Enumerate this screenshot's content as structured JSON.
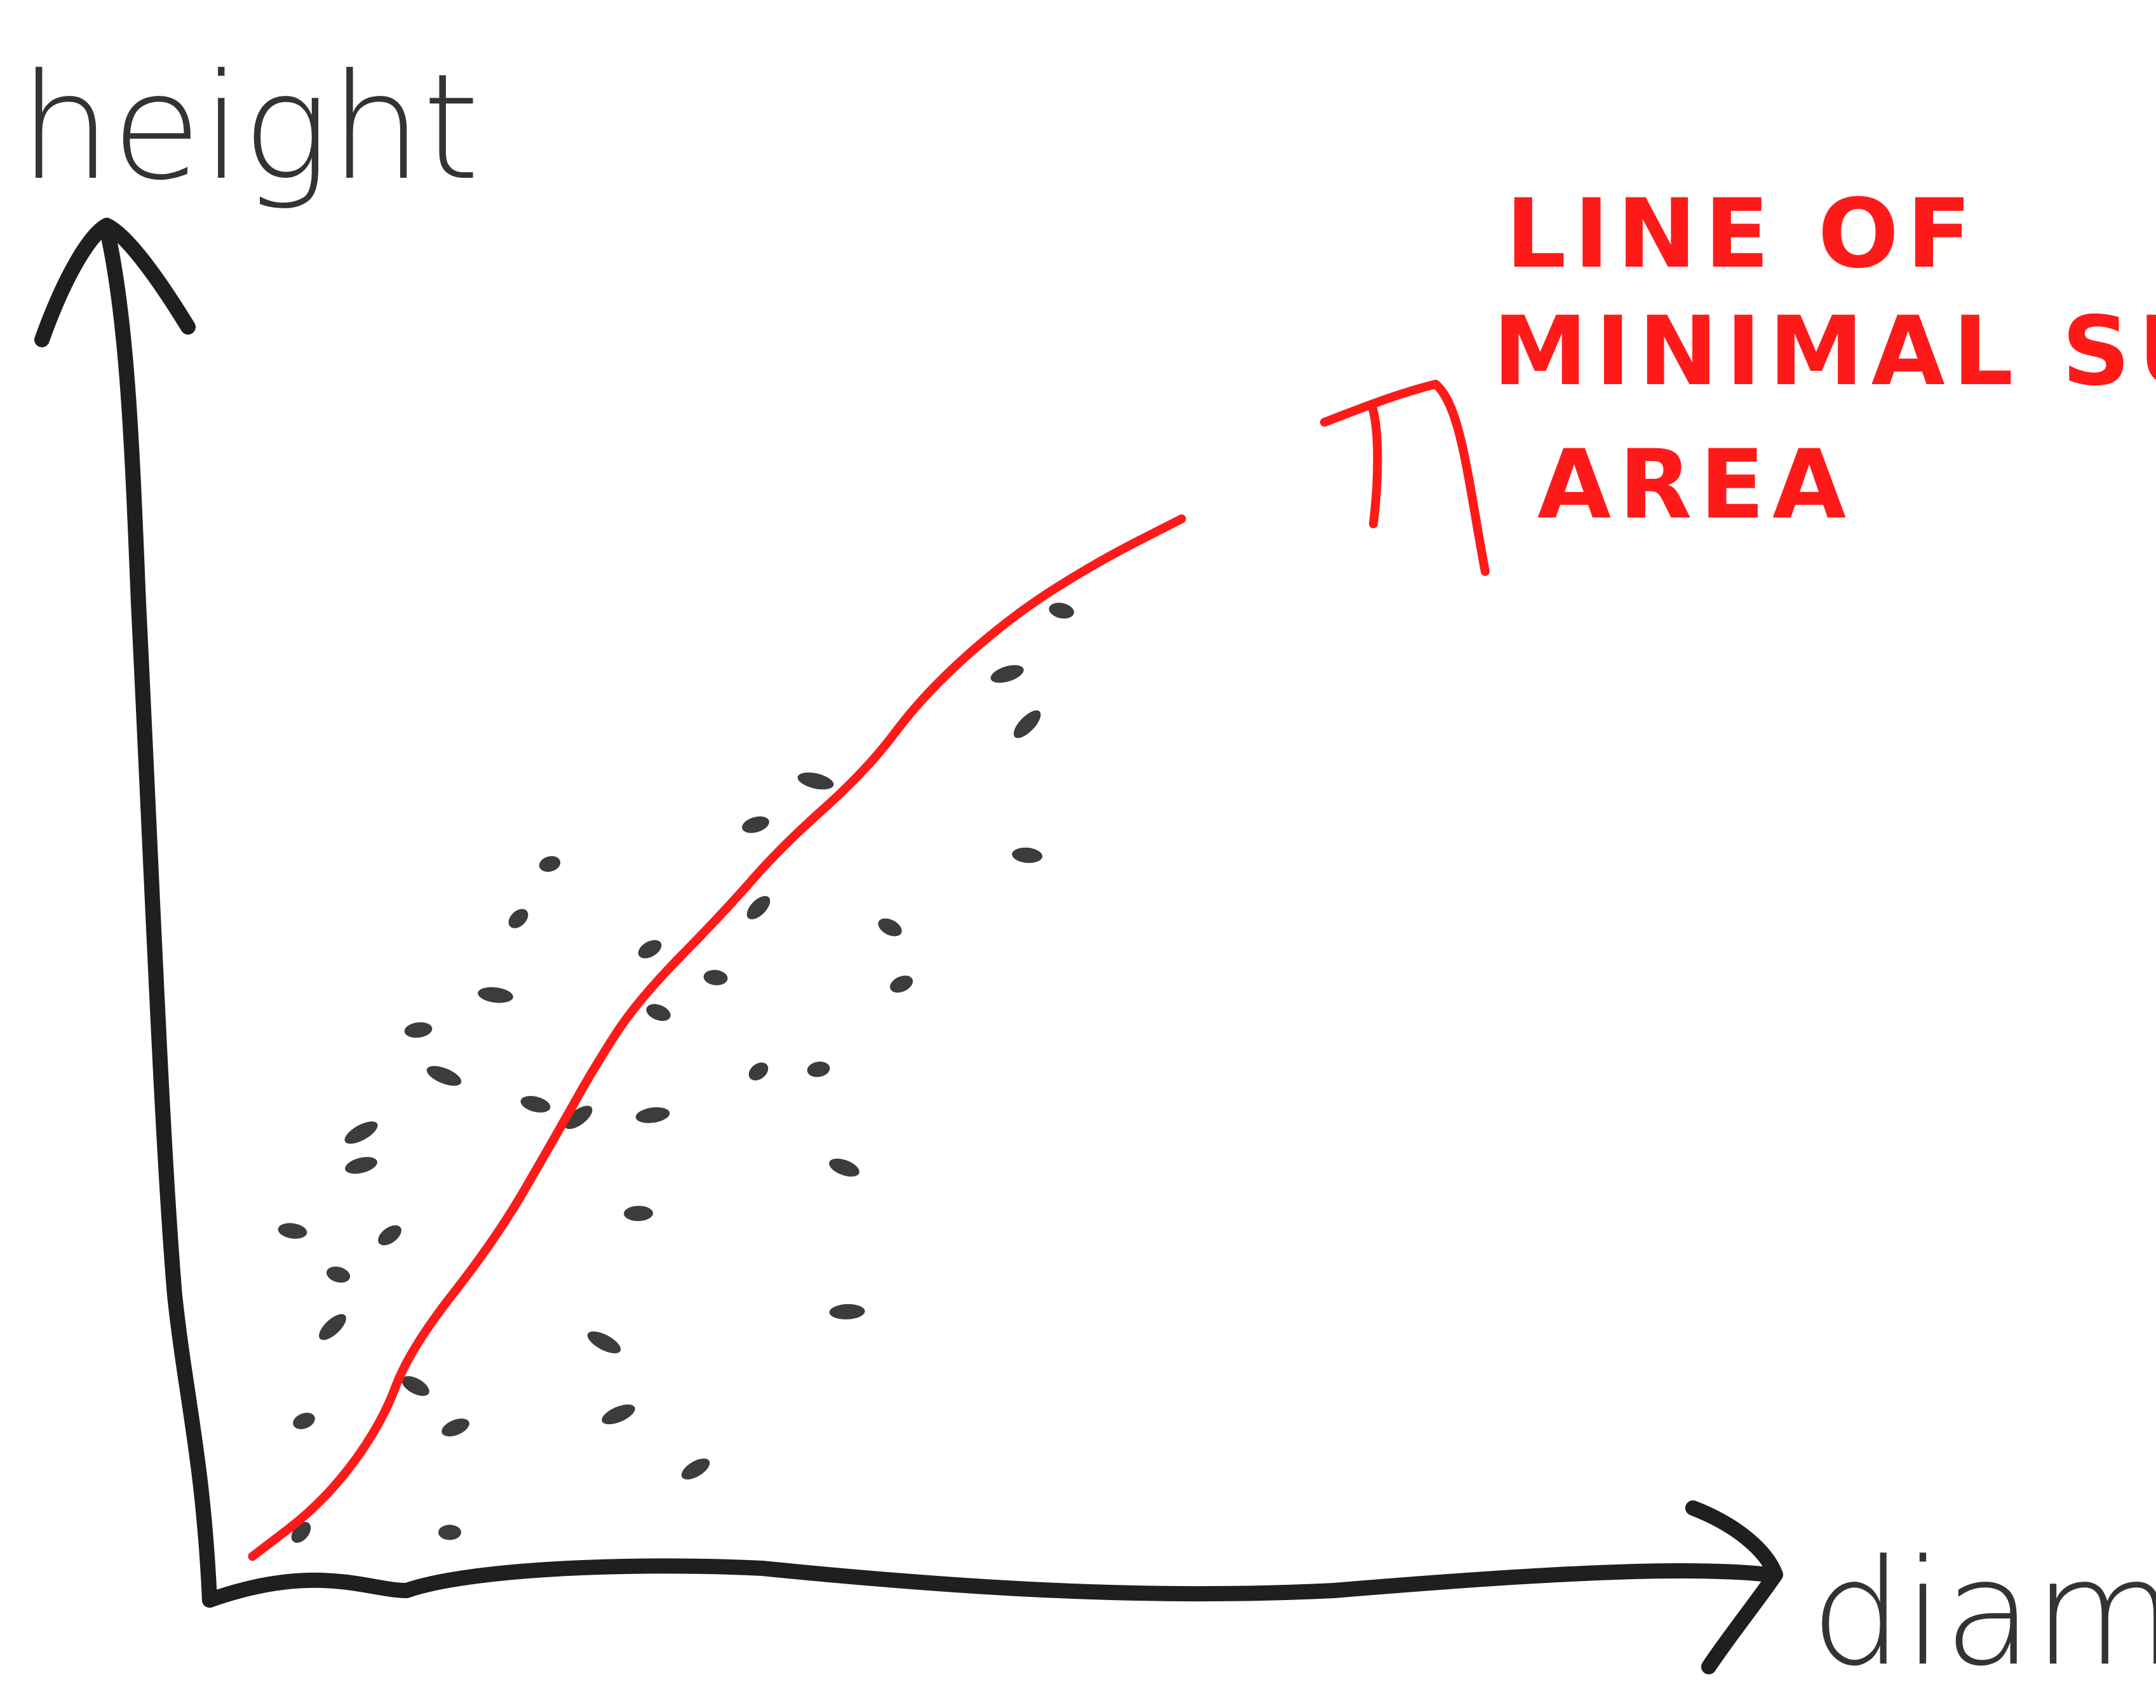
{
  "chart_data": {
    "type": "scatter",
    "title": "",
    "xlabel": "diameter",
    "ylabel": "height",
    "grid": false,
    "legend": "none",
    "xlim": [
      0,
      100
    ],
    "ylim": [
      0,
      100
    ],
    "points": [
      {
        "x": 6.4,
        "y": 6.2
      },
      {
        "x": 6.6,
        "y": 16.4
      },
      {
        "x": 5.8,
        "y": 33.8
      },
      {
        "x": 8.6,
        "y": 25.0
      },
      {
        "x": 10.6,
        "y": 39.8
      },
      {
        "x": 9.0,
        "y": 29.8
      },
      {
        "x": 12.6,
        "y": 33.4
      },
      {
        "x": 14.6,
        "y": 52.2
      },
      {
        "x": 16.4,
        "y": 48.0
      },
      {
        "x": 10.6,
        "y": 42.8
      },
      {
        "x": 16.8,
        "y": 6.2
      },
      {
        "x": 14.4,
        "y": 19.6
      },
      {
        "x": 17.2,
        "y": 15.8
      },
      {
        "x": 20.0,
        "y": 55.4
      },
      {
        "x": 21.6,
        "y": 62.4
      },
      {
        "x": 23.8,
        "y": 67.4
      },
      {
        "x": 22.8,
        "y": 45.4
      },
      {
        "x": 25.8,
        "y": 44.2
      },
      {
        "x": 31.0,
        "y": 44.4
      },
      {
        "x": 31.4,
        "y": 53.8
      },
      {
        "x": 30.8,
        "y": 59.6
      },
      {
        "x": 30.0,
        "y": 35.4
      },
      {
        "x": 27.6,
        "y": 23.6
      },
      {
        "x": 28.6,
        "y": 17.0
      },
      {
        "x": 35.4,
        "y": 57.0
      },
      {
        "x": 38.4,
        "y": 63.4
      },
      {
        "x": 38.2,
        "y": 71.0
      },
      {
        "x": 42.4,
        "y": 75.0
      },
      {
        "x": 38.4,
        "y": 48.4
      },
      {
        "x": 42.6,
        "y": 48.6
      },
      {
        "x": 44.4,
        "y": 39.6
      },
      {
        "x": 34.0,
        "y": 12.0
      },
      {
        "x": 44.6,
        "y": 26.4
      },
      {
        "x": 47.6,
        "y": 61.6
      },
      {
        "x": 48.4,
        "y": 56.4
      },
      {
        "x": 57.2,
        "y": 68.2
      },
      {
        "x": 57.2,
        "y": 80.2
      },
      {
        "x": 55.8,
        "y": 84.8
      },
      {
        "x": 59.6,
        "y": 90.6
      }
    ],
    "trend_line": {
      "x": [
        3.0,
        8.0,
        12.0,
        14.0,
        20.0,
        24.0,
        27.0,
        30.0,
        36.0,
        40.0,
        46.0,
        50.0,
        56.0,
        62.0,
        68.0
      ],
      "y": [
        4.0,
        9.0,
        16.0,
        23.0,
        33.0,
        42.0,
        49.0,
        55.0,
        63.0,
        69.0,
        76.0,
        83.0,
        90.0,
        95.0,
        99.0
      ]
    },
    "annotations": [
      {
        "lines": [
          "LINE OF",
          "MINIMAL SURFACE",
          "AREA"
        ],
        "color": "#ff1a1a"
      }
    ],
    "colors": {
      "points": "#2b2b2b",
      "trend_line": "#ff1a1a",
      "axes": "#1f1f1f"
    }
  }
}
